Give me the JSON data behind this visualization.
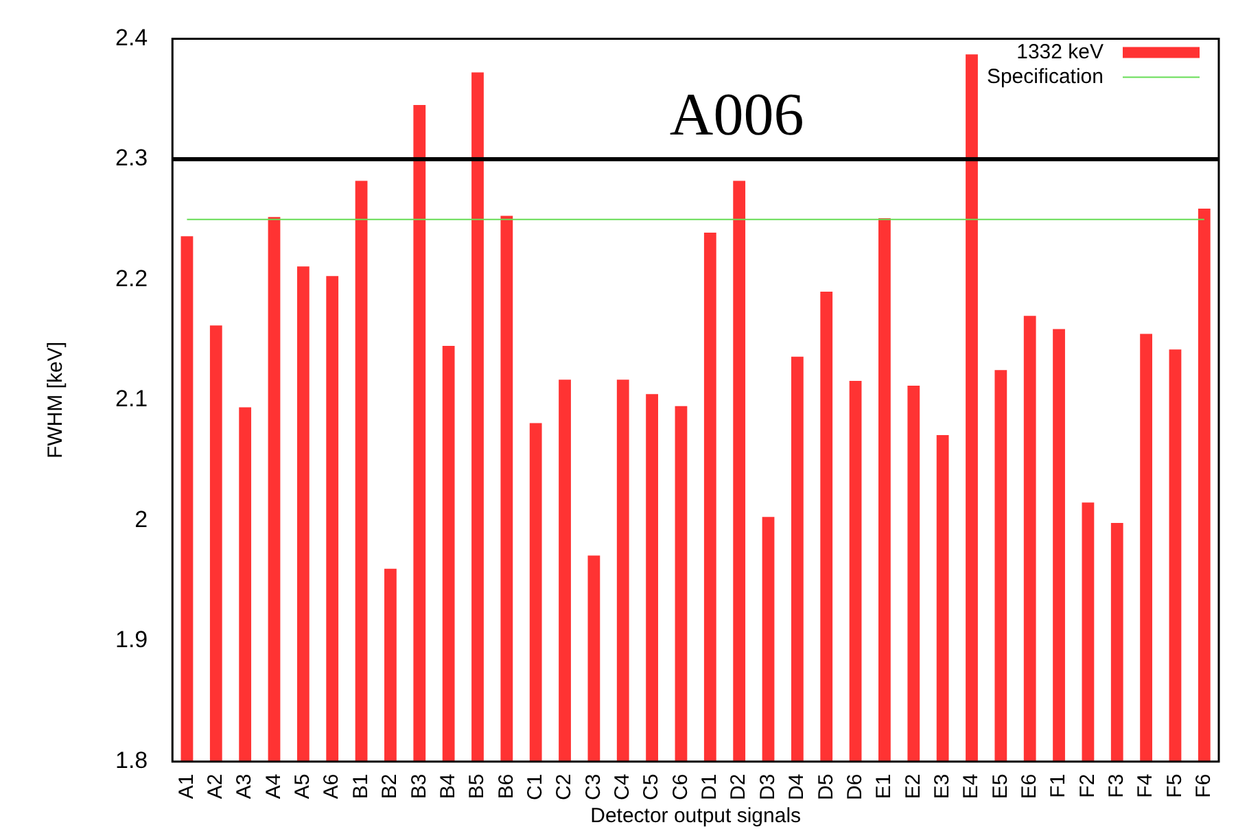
{
  "chart_data": {
    "type": "bar",
    "title": "A006",
    "xlabel": "Detector output signals",
    "ylabel": "FWHM [keV]",
    "categories": [
      "A1",
      "A2",
      "A3",
      "A4",
      "A5",
      "A6",
      "B1",
      "B2",
      "B3",
      "B4",
      "B5",
      "B6",
      "C1",
      "C2",
      "C3",
      "C4",
      "C5",
      "C6",
      "D1",
      "D2",
      "D3",
      "D4",
      "D5",
      "D6",
      "E1",
      "E2",
      "E3",
      "E4",
      "E5",
      "E6",
      "F1",
      "F2",
      "F3",
      "F4",
      "F5",
      "F6"
    ],
    "series": [
      {
        "name": "1332 keV",
        "color": "#ff3333",
        "values": [
          2.236,
          2.162,
          2.094,
          2.252,
          2.211,
          2.203,
          2.282,
          1.96,
          2.345,
          2.145,
          2.372,
          2.253,
          2.081,
          2.117,
          1.971,
          2.117,
          2.105,
          2.095,
          2.239,
          2.282,
          2.003,
          2.136,
          2.19,
          2.116,
          2.251,
          2.112,
          2.071,
          2.387,
          2.125,
          2.17,
          2.159,
          2.015,
          1.998,
          2.155,
          2.142,
          2.259
        ]
      },
      {
        "name": "Specification",
        "type": "line",
        "color": "#66dd55",
        "values": [
          2.25,
          2.25,
          2.25,
          2.25,
          2.25,
          2.25,
          2.25,
          2.25,
          2.25,
          2.25,
          2.25,
          2.25,
          2.25,
          2.25,
          2.25,
          2.25,
          2.25,
          2.25,
          2.25,
          2.25,
          2.25,
          2.25,
          2.25,
          2.25,
          2.25,
          2.25,
          2.25,
          2.25,
          2.25,
          2.25,
          2.25,
          2.25,
          2.25,
          2.25,
          2.25,
          2.25
        ]
      }
    ],
    "ylim": [
      1.8,
      2.4
    ],
    "yticks": [
      1.8,
      1.9,
      2,
      2.1,
      2.2,
      2.3,
      2.4
    ],
    "ref_lines": [
      {
        "axis": "y",
        "value": 2.3,
        "color": "#000000"
      }
    ],
    "grid": false,
    "legend": "top right",
    "marker": "none"
  }
}
